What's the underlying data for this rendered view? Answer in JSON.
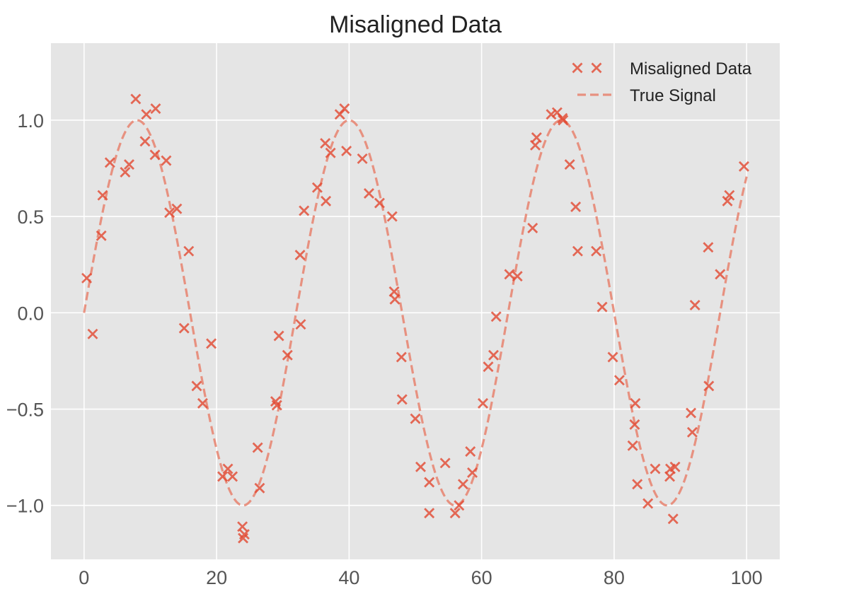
{
  "chart_data": {
    "type": "scatter",
    "title": "Misaligned Data",
    "xlabel": "",
    "ylabel": "",
    "xlim": [
      -5,
      105
    ],
    "ylim": [
      -1.28,
      1.4
    ],
    "xticks": [
      0,
      20,
      40,
      60,
      80,
      100
    ],
    "xtick_labels": [
      "0",
      "20",
      "40",
      "60",
      "80",
      "100"
    ],
    "yticks": [
      -1.0,
      -0.5,
      0.0,
      0.5,
      1.0
    ],
    "ytick_labels": [
      "−1.0",
      "−0.5",
      "0.0",
      "0.5",
      "1.0"
    ],
    "grid": true,
    "legend_position": "top-right",
    "colors": {
      "points": "#e24a33",
      "line": "#e8826e",
      "background": "#e5e5e5",
      "grid": "#ffffff"
    },
    "series": [
      {
        "name": "Misaligned Data",
        "kind": "scatter",
        "marker": "x",
        "x": [
          0.4,
          1.3,
          2.6,
          2.8,
          3.9,
          6.2,
          6.8,
          7.8,
          9.2,
          9.4,
          10.7,
          10.8,
          12.4,
          12.9,
          14.0,
          15.1,
          15.8,
          17.0,
          17.9,
          19.2,
          20.9,
          21.7,
          22.4,
          23.9,
          24.0,
          24.2,
          26.2,
          26.5,
          28.9,
          29.1,
          29.4,
          30.7,
          32.6,
          32.7,
          33.2,
          35.2,
          36.4,
          36.5,
          37.2,
          38.6,
          39.3,
          39.6,
          42.0,
          43.0,
          44.6,
          46.5,
          46.8,
          46.9,
          47.9,
          48.0,
          50.0,
          50.8,
          52.1,
          52.1,
          54.5,
          56.0,
          56.6,
          57.2,
          58.3,
          58.6,
          60.2,
          61.0,
          61.8,
          62.2,
          64.2,
          65.4,
          67.7,
          68.1,
          68.3,
          70.5,
          71.4,
          72.2,
          72.3,
          73.3,
          74.2,
          74.5,
          77.3,
          78.2,
          79.8,
          80.8,
          82.8,
          83.1,
          83.2,
          83.5,
          85.1,
          86.2,
          88.4,
          88.5,
          88.9,
          89.2,
          91.6,
          91.8,
          92.2,
          94.2,
          94.3,
          96.0,
          97.1,
          97.4,
          99.6
        ],
        "y": [
          0.18,
          -0.11,
          0.4,
          0.61,
          0.78,
          0.73,
          0.77,
          1.11,
          0.89,
          1.03,
          0.82,
          1.06,
          0.79,
          0.52,
          0.54,
          -0.08,
          0.32,
          -0.38,
          -0.47,
          -0.16,
          -0.85,
          -0.81,
          -0.85,
          -1.11,
          -1.17,
          -1.15,
          -0.7,
          -0.91,
          -0.46,
          -0.48,
          -0.12,
          -0.22,
          0.3,
          -0.06,
          0.53,
          0.65,
          0.88,
          0.58,
          0.83,
          1.03,
          1.06,
          0.84,
          0.8,
          0.62,
          0.57,
          0.5,
          0.11,
          0.07,
          -0.23,
          -0.45,
          -0.55,
          -0.8,
          -0.88,
          -1.04,
          -0.78,
          -1.04,
          -1.0,
          -0.89,
          -0.72,
          -0.83,
          -0.47,
          -0.28,
          -0.22,
          -0.02,
          0.2,
          0.19,
          0.44,
          0.87,
          0.91,
          1.03,
          1.04,
          1.01,
          1.0,
          0.77,
          0.55,
          0.32,
          0.32,
          0.03,
          -0.23,
          -0.35,
          -0.69,
          -0.58,
          -0.47,
          -0.89,
          -0.99,
          -0.81,
          -0.85,
          -0.81,
          -1.07,
          -0.8,
          -0.52,
          -0.62,
          0.04,
          0.34,
          -0.38,
          0.2,
          0.58,
          0.61,
          0.76
        ]
      },
      {
        "name": "True Signal",
        "kind": "line",
        "style": "dashed",
        "function": "sin(2*pi*x/32)",
        "x_range": [
          0,
          100
        ]
      }
    ]
  }
}
